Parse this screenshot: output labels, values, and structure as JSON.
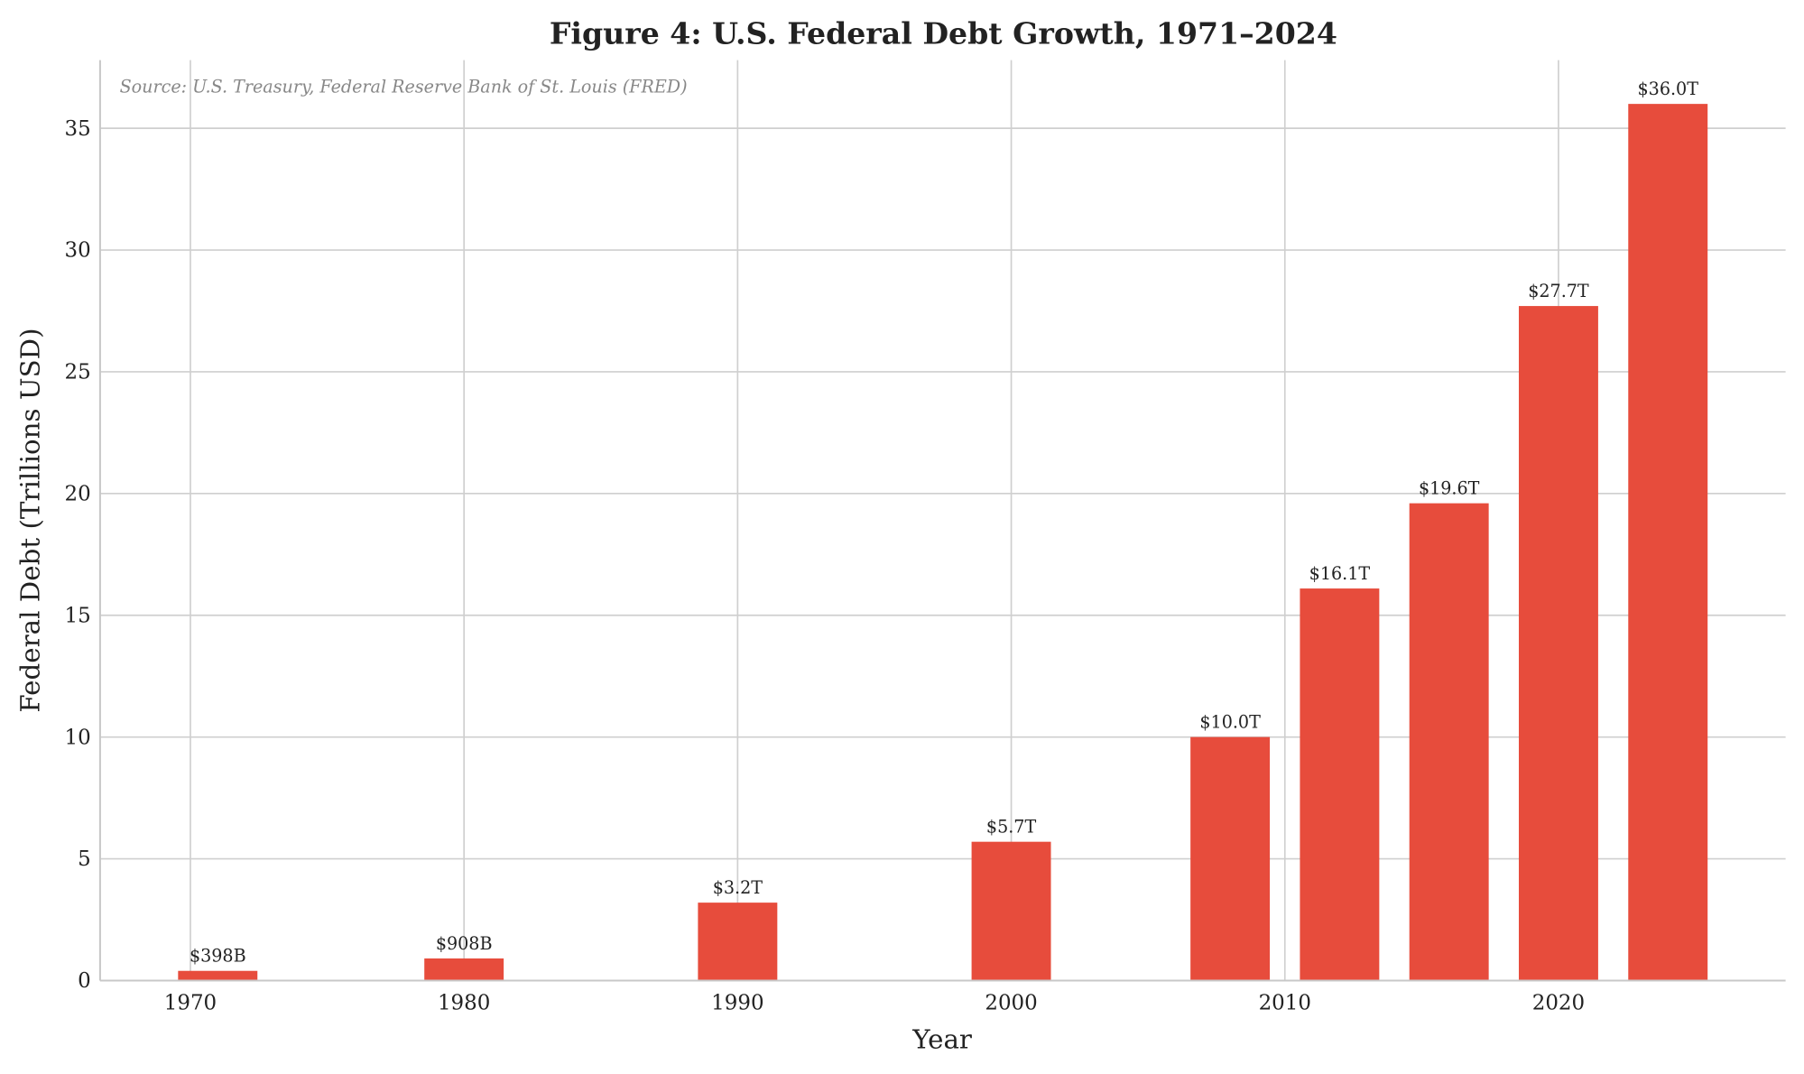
{
  "chart_data": {
    "type": "bar",
    "title": "Figure 4: U.S. Federal Debt Growth, 1971–2024",
    "xlabel": "Year",
    "ylabel": "Federal Debt (Trillions USD)",
    "x": [
      1971,
      1980,
      1990,
      2000,
      2008,
      2012,
      2016,
      2020,
      2024
    ],
    "values": [
      0.398,
      0.908,
      3.2,
      5.7,
      10.0,
      16.1,
      19.6,
      27.7,
      36.0
    ],
    "data_labels": [
      "$398B",
      "$908B",
      "$3.2T",
      "$5.7T",
      "$10.0T",
      "$16.1T",
      "$19.6T",
      "$27.7T",
      "$36.0T"
    ],
    "xlim": [
      1966.7,
      2028.3
    ],
    "ylim": [
      0,
      37.8
    ],
    "xticks": [
      "1970",
      "1980",
      "1990",
      "2000",
      "2010",
      "2020"
    ],
    "yticks": [
      "0",
      "5",
      "10",
      "15",
      "20",
      "25",
      "30",
      "35"
    ],
    "grid": true,
    "bar_color": "#e74c3c",
    "annotation": "Source: U.S. Treasury, Federal Reserve Bank of St. Louis (FRED)"
  }
}
